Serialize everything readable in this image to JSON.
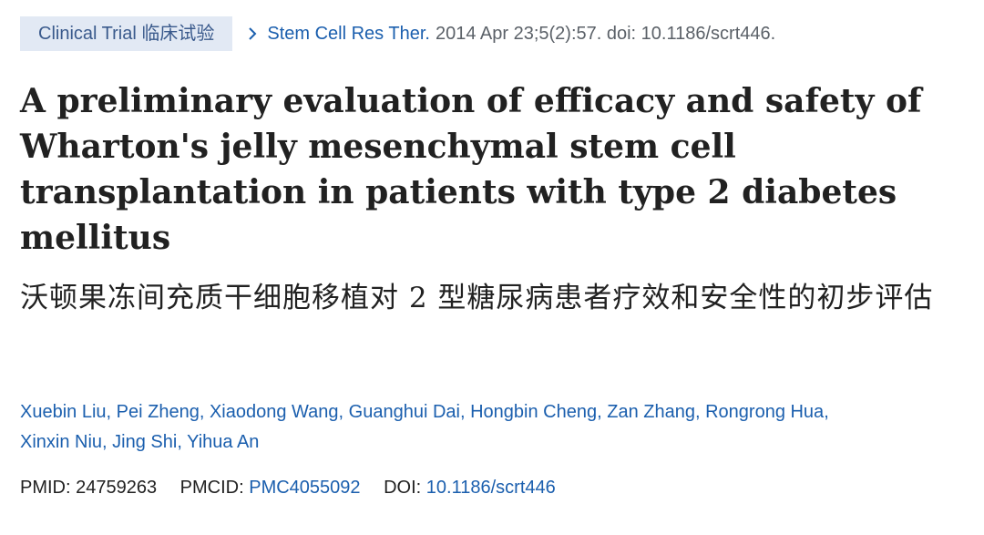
{
  "header": {
    "badge_label": "Clinical Trial 临床试验",
    "journal_link": "Stem Cell Res Ther.",
    "citation_rest": "2014 Apr 23;5(2):57. doi: 10.1186/scrt446."
  },
  "article": {
    "title": "A preliminary evaluation of efficacy and safety of Wharton's jelly mesenchymal stem cell transplantation in patients with type 2 diabetes mellitus",
    "subtitle_cn": "沃顿果冻间充质干细胞移植对 2 型糖尿病患者疗效和安全性的初步评估"
  },
  "authors": [
    "Xuebin Liu",
    "Pei Zheng",
    "Xiaodong Wang",
    "Guanghui Dai",
    "Hongbin Cheng",
    "Zan Zhang",
    "Rongrong Hua",
    "Xinxin Niu",
    "Jing Shi",
    "Yihua An"
  ],
  "identifiers": {
    "pmid_label": "PMID:",
    "pmid_value": "24759263",
    "pmcid_label": "PMCID:",
    "pmcid_value": "PMC4055092",
    "doi_label": "DOI:",
    "doi_value": "10.1186/scrt446"
  },
  "colors": {
    "link": "#1b5fae",
    "badge_bg": "#e2e9f4",
    "badge_text": "#3a5a8c",
    "text": "#212121",
    "muted": "#5b6168"
  },
  "icons": {
    "chevron": "chevron-right-icon"
  }
}
